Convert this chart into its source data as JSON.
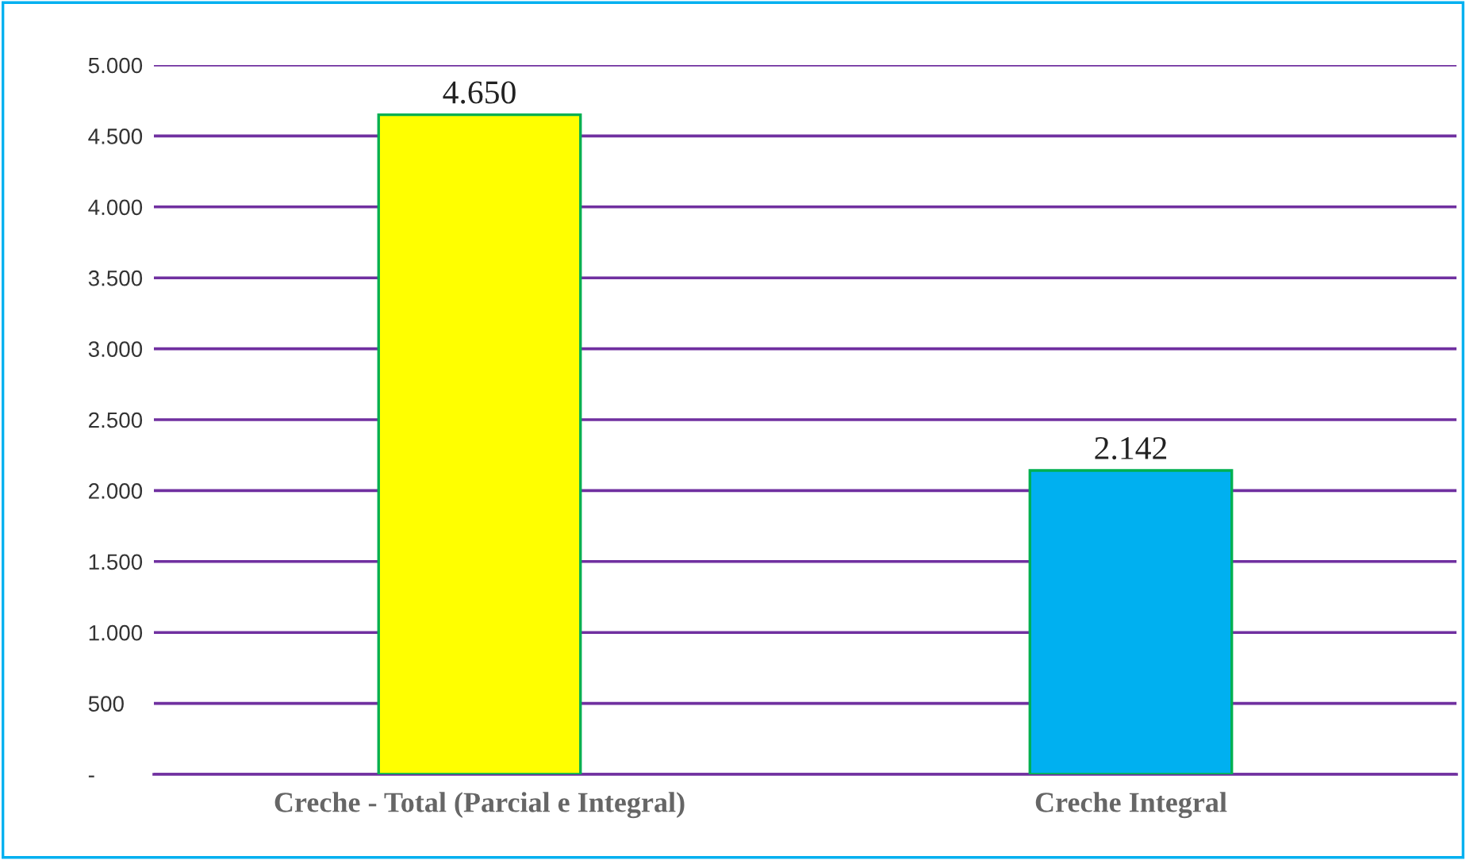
{
  "chart_data": {
    "type": "bar",
    "categories": [
      "Creche - Total (Parcial e Integral)",
      "Creche Integral"
    ],
    "values": [
      4650,
      2142
    ],
    "colors": [
      "#ffff00",
      "#00b0f0"
    ],
    "value_labels": [
      "4.650",
      "2.142"
    ],
    "ylim": [
      0,
      5000
    ],
    "yticks": [
      {
        "value": 0,
        "label": "-"
      },
      {
        "value": 500,
        "label": "500"
      },
      {
        "value": 1000,
        "label": "1.000"
      },
      {
        "value": 1500,
        "label": "1.500"
      },
      {
        "value": 2000,
        "label": "2.000"
      },
      {
        "value": 2500,
        "label": "2.500"
      },
      {
        "value": 3000,
        "label": "3.000"
      },
      {
        "value": 3500,
        "label": "3.500"
      },
      {
        "value": 4000,
        "label": "4.000"
      },
      {
        "value": 4500,
        "label": "4.500"
      },
      {
        "value": 5000,
        "label": "5.000"
      }
    ],
    "grid": "y",
    "legend": false
  }
}
